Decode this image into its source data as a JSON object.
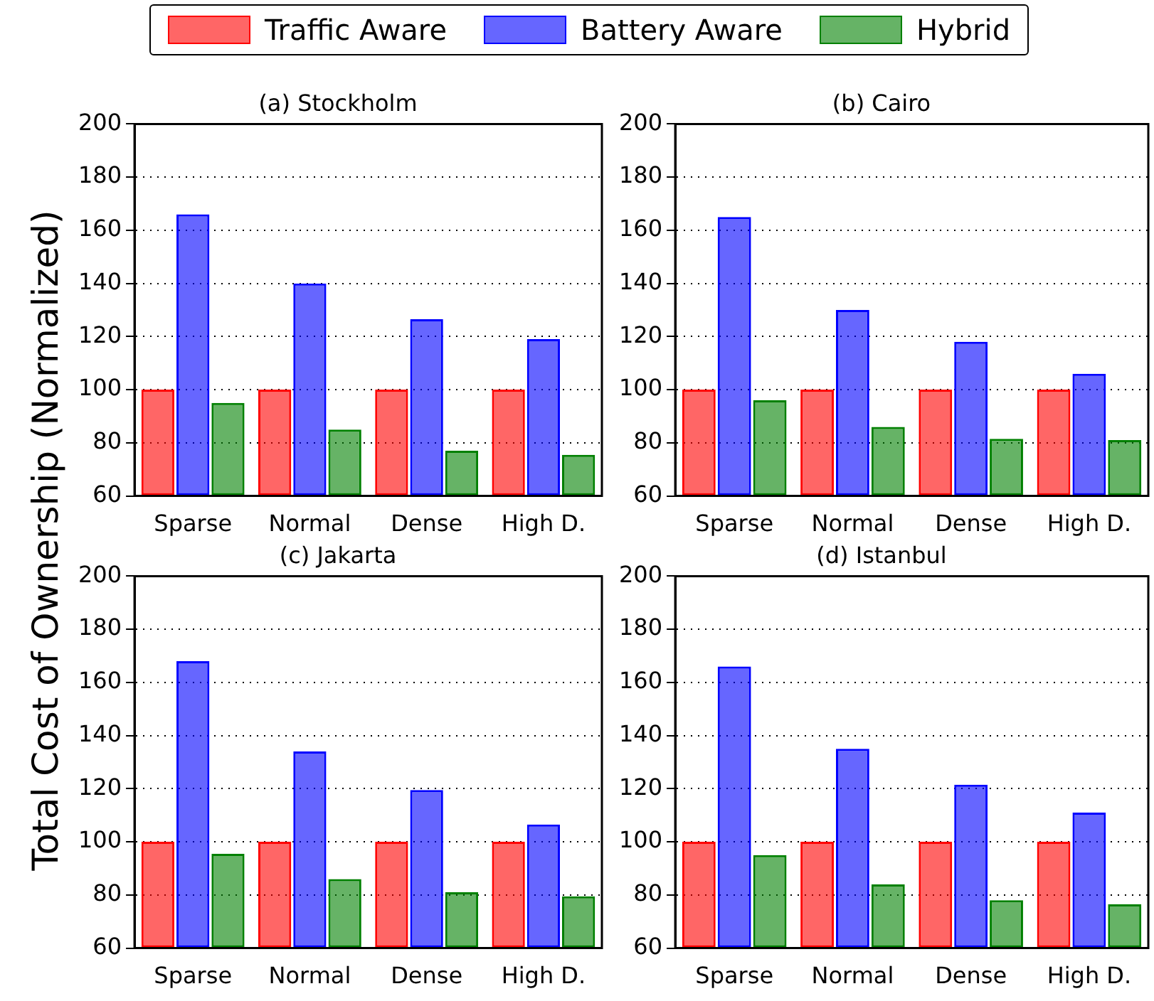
{
  "chart_data": [
    {
      "type": "bar",
      "title": "(a) Stockholm",
      "ylabel": "Total Cost of Ownership (Normalized)",
      "categories": [
        "Sparse",
        "Normal",
        "Dense",
        "High D."
      ],
      "series": [
        {
          "name": "Traffic Aware",
          "color": "#ff0000",
          "values": [
            100,
            100,
            100,
            100
          ]
        },
        {
          "name": "Battery Aware",
          "color": "#0000ff",
          "values": [
            166,
            140,
            126.5,
            119
          ]
        },
        {
          "name": "Hybrid",
          "color": "#008000",
          "values": [
            95,
            85,
            77,
            75.5
          ]
        }
      ],
      "ylim": [
        60,
        200
      ],
      "yticks": [
        60,
        80,
        100,
        120,
        140,
        160,
        180,
        200
      ],
      "grid": "y",
      "legend": "top"
    },
    {
      "type": "bar",
      "title": "(b) Cairo",
      "categories": [
        "Sparse",
        "Normal",
        "Dense",
        "High D."
      ],
      "series": [
        {
          "color": "#ff0000",
          "values": [
            100,
            100,
            100,
            100
          ]
        },
        {
          "color": "#0000ff",
          "values": [
            165,
            130,
            118,
            106
          ]
        },
        {
          "color": "#008000",
          "values": [
            96,
            86,
            81.5,
            81
          ]
        }
      ],
      "ylim": [
        60,
        200
      ],
      "yticks": [
        60,
        80,
        100,
        120,
        140,
        160,
        180,
        200
      ],
      "grid": "y"
    },
    {
      "type": "bar",
      "title": "(c) Jakarta",
      "categories": [
        "Sparse",
        "Normal",
        "Dense",
        "High D."
      ],
      "series": [
        {
          "color": "#ff0000",
          "values": [
            100,
            100,
            100,
            100
          ]
        },
        {
          "color": "#0000ff",
          "values": [
            168,
            134,
            119.5,
            106.5
          ]
        },
        {
          "color": "#008000",
          "values": [
            95.5,
            86,
            81,
            79.5
          ]
        }
      ],
      "ylim": [
        60,
        200
      ],
      "yticks": [
        60,
        80,
        100,
        120,
        140,
        160,
        180,
        200
      ],
      "grid": "y"
    },
    {
      "type": "bar",
      "title": "(d) Istanbul",
      "categories": [
        "Sparse",
        "Normal",
        "Dense",
        "High D."
      ],
      "series": [
        {
          "color": "#ff0000",
          "values": [
            100,
            100,
            100,
            100
          ]
        },
        {
          "color": "#0000ff",
          "values": [
            166,
            135,
            121.5,
            111
          ]
        },
        {
          "color": "#008000",
          "values": [
            95,
            84,
            78,
            76.5
          ]
        }
      ],
      "ylim": [
        60,
        200
      ],
      "yticks": [
        60,
        80,
        100,
        120,
        140,
        160,
        180,
        200
      ],
      "grid": "y"
    }
  ]
}
